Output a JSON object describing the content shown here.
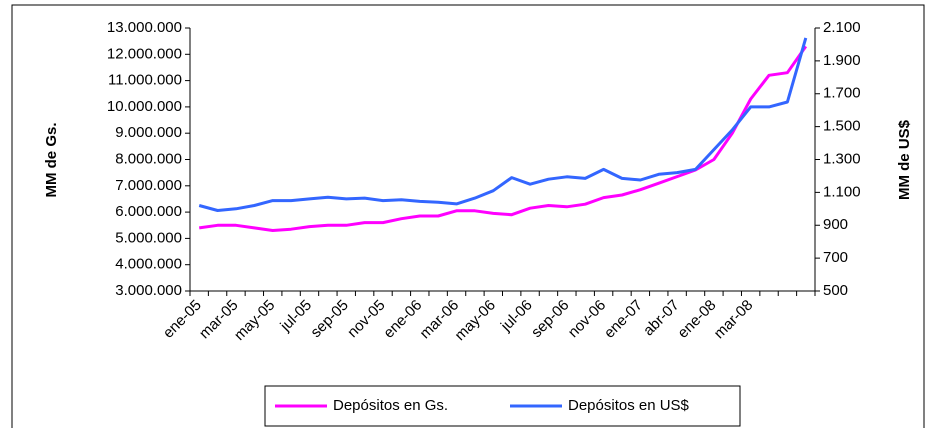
{
  "chart_data": {
    "type": "line",
    "y_label": "MM de Gs.",
    "y2_label": "MM de US$",
    "categories": [
      "ene-05",
      null,
      "mar-05",
      null,
      "may-05",
      null,
      "jul-05",
      null,
      "sep-05",
      null,
      "nov-05",
      null,
      "ene-06",
      null,
      "mar-06",
      null,
      "may-06",
      null,
      "jul-06",
      null,
      "sep-06",
      null,
      "nov-06",
      null,
      "ene-07",
      null,
      "abr-07",
      null,
      "ene-08",
      null,
      "mar-08",
      null,
      null,
      null
    ],
    "series": [
      {
        "name": "Depósitos en Gs.",
        "color": "#ff00ff",
        "axis": "y",
        "values": [
          5400000,
          5500000,
          5500000,
          5400000,
          5300000,
          5350000,
          5450000,
          5500000,
          5500000,
          5600000,
          5600000,
          5750000,
          5850000,
          5850000,
          6050000,
          6050000,
          5950000,
          5900000,
          6150000,
          6250000,
          6200000,
          6300000,
          6550000,
          6650000,
          6850000,
          7100000,
          7350000,
          7600000,
          8000000,
          9000000,
          10300000,
          11200000,
          11300000,
          12300000
        ]
      },
      {
        "name": "Depósitos en US$",
        "color": "#3366ff",
        "axis": "y2",
        "values": [
          1020,
          990,
          1000,
          1020,
          1050,
          1050,
          1060,
          1070,
          1060,
          1065,
          1050,
          1055,
          1045,
          1040,
          1030,
          1065,
          1110,
          1190,
          1150,
          1180,
          1195,
          1185,
          1240,
          1185,
          1175,
          1210,
          1220,
          1240,
          1360,
          1480,
          1620,
          1620,
          1650,
          2040
        ]
      }
    ],
    "ylim": [
      3000000,
      13000000
    ],
    "yticks": [
      {
        "value": 3000000,
        "label": "3.000.000"
      },
      {
        "value": 4000000,
        "label": "4.000.000"
      },
      {
        "value": 5000000,
        "label": "5.000.000"
      },
      {
        "value": 6000000,
        "label": "6.000.000"
      },
      {
        "value": 7000000,
        "label": "7.000.000"
      },
      {
        "value": 8000000,
        "label": "8.000.000"
      },
      {
        "value": 9000000,
        "label": "9.000.000"
      },
      {
        "value": 10000000,
        "label": "10.000.000"
      },
      {
        "value": 11000000,
        "label": "11.000.000"
      },
      {
        "value": 12000000,
        "label": "12.000.000"
      },
      {
        "value": 13000000,
        "label": "13.000.000"
      }
    ],
    "y2lim": [
      500,
      2100
    ],
    "y2ticks": [
      500,
      700,
      900,
      {
        "value": 1100,
        "label": "1.100"
      },
      {
        "value": 1300,
        "label": "1.300"
      },
      {
        "value": 1500,
        "label": "1.500"
      },
      {
        "value": 1700,
        "label": "1.700"
      },
      {
        "value": 1900,
        "label": "1.900"
      },
      {
        "value": 2100,
        "label": "2.100"
      }
    ],
    "grid": false,
    "legend": "bottom"
  }
}
